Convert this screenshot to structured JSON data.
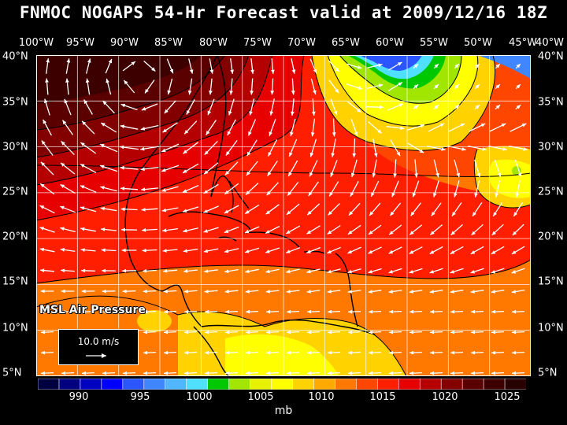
{
  "title": "FNMOC NOGAPS 54-Hr Forecast valid at 2009/12/16 18Z",
  "overlay_title": "MSL Air Pressure",
  "reference_vector": {
    "label": "10.0 m/s"
  },
  "longitude_labels": [
    "100°W",
    "95°W",
    "90°W",
    "85°W",
    "80°W",
    "75°W",
    "70°W",
    "65°W",
    "60°W",
    "55°W",
    "50°W",
    "45°W",
    "40°W"
  ],
  "latitude_labels": [
    "40°N",
    "35°N",
    "30°N",
    "25°N",
    "20°N",
    "15°N",
    "10°N",
    "5°N"
  ],
  "colorbar": {
    "units": "mb",
    "tick_labels": [
      "990",
      "995",
      "1000",
      "1005",
      "1010",
      "1015",
      "1020",
      "1025"
    ],
    "colors": [
      "#000040",
      "#000080",
      "#0000c0",
      "#0000ff",
      "#2a55ff",
      "#3f86ff",
      "#4fb6ff",
      "#50e0ff",
      "#00c800",
      "#a0e600",
      "#e6f000",
      "#ffff00",
      "#ffd200",
      "#ffaa00",
      "#ff7800",
      "#ff4600",
      "#ff1e00",
      "#e60000",
      "#b40000",
      "#820000",
      "#5a0000",
      "#3c0000",
      "#280000"
    ]
  },
  "colors": {
    "background": "#000000",
    "vector": "#ffffff",
    "coast": "#000000",
    "grid": "#ffffff"
  }
}
